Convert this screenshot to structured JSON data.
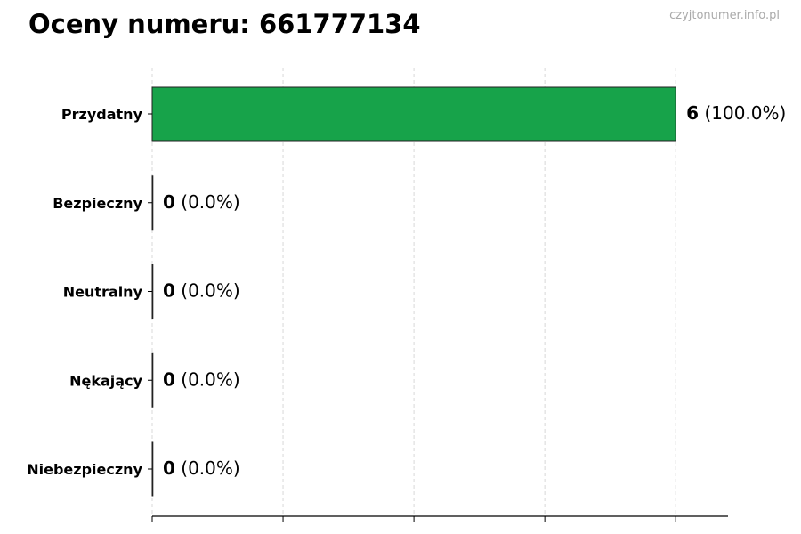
{
  "watermark": "czyjtonumer.info.pl",
  "chart_data": {
    "type": "bar",
    "orientation": "horizontal",
    "title": "Oceny numeru: 661777134",
    "categories": [
      "Przydatny",
      "Bezpieczny",
      "Neutralny",
      "Nękający",
      "Niebezpieczny"
    ],
    "values": [
      6,
      0,
      0,
      0,
      0
    ],
    "data_labels": [
      {
        "count": "6",
        "percent": "(100.0%)"
      },
      {
        "count": "0",
        "percent": "(0.0%)"
      },
      {
        "count": "0",
        "percent": "(0.0%)"
      },
      {
        "count": "0",
        "percent": "(0.0%)"
      },
      {
        "count": "0",
        "percent": "(0.0%)"
      }
    ],
    "bar_color": "#17a34a",
    "xlim": [
      0,
      6.6
    ],
    "x_ticks": [
      0,
      1.5,
      3,
      4.5,
      6
    ],
    "x_tick_labels_shown": false,
    "grid": "vertical dashed",
    "xlabel": "",
    "ylabel": ""
  }
}
